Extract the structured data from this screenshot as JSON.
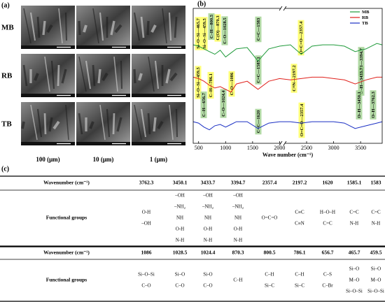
{
  "panel_a": {
    "label": "(a)",
    "rows": [
      "MB",
      "RB",
      "TB"
    ],
    "columns": [
      "100 (μm)",
      "10 (μm)",
      "1 (μm)"
    ]
  },
  "chart_data": {
    "type": "line",
    "panel_label": "(b)",
    "x_label": "Wave number (cm⁻¹)",
    "x": [
      400,
      500,
      600,
      700,
      800,
      900,
      1000,
      1100,
      1200,
      1400,
      1600,
      1800,
      2000,
      2200,
      2400,
      2600,
      2800,
      3000,
      3200,
      3400,
      3600,
      3800,
      3900
    ],
    "xlim": [
      400,
      3900
    ],
    "xticks": [
      500,
      1000,
      1500,
      2000,
      2500,
      3000,
      3500
    ],
    "ylim": [
      0,
      100
    ],
    "legend": "upper right",
    "series": [
      {
        "name": "MB",
        "color": "#1f9a3a",
        "values": [
          73,
          72,
          70,
          68,
          66,
          69,
          64,
          67,
          70,
          71,
          61,
          70,
          72,
          73,
          66,
          72,
          73,
          73,
          72,
          68,
          70,
          74,
          73
        ],
        "annotations": [
          "Si–O–Si—465.7",
          "Si–O–Si—459.5",
          "C–H—800.5",
          "C(O)—870.3",
          "C–O—1028.5",
          "C=C—1583",
          "O=C=O—2357.4",
          "O–H—3394.7"
        ]
      },
      {
        "name": "RB",
        "color": "#e0201b",
        "values": [
          49,
          48,
          46,
          43,
          41,
          42,
          40,
          38,
          44,
          46,
          40,
          46,
          48,
          47,
          48,
          49,
          49,
          48,
          47,
          44,
          47,
          49,
          49
        ],
        "annotations": [
          "Si–O–Si—459.5",
          "C–H—786.1",
          "C–O—1086",
          "C=C—1585.1",
          "C≡N—2197.2",
          "O–H—3433.7"
        ]
      },
      {
        "name": "TB",
        "color": "#1a2fc4",
        "values": [
          16,
          15,
          12,
          10,
          13,
          14,
          12,
          14,
          16,
          16,
          11,
          15,
          16,
          16,
          15,
          16,
          16,
          16,
          15,
          11,
          13,
          15,
          16
        ],
        "annotations": [
          "C–H—656.7",
          "C–O—1024.4",
          "C=C—1620",
          "O=C=O—2357.4",
          "O–H—3450.1",
          "O–H—3762.3"
        ]
      }
    ]
  },
  "table": {
    "label": "(c)",
    "blocks": [
      {
        "header": "Wavenumber (cm⁻¹)",
        "wavenumbers": [
          "3762.3",
          "3450.1",
          "3433.7",
          "3394.7",
          "2357.4",
          "2197.2",
          "1620",
          "1585.1",
          "1583"
        ],
        "row_label": "Functional groups",
        "groups": [
          [
            "O-H",
            "–OH"
          ],
          [
            "–OH",
            "–NH₂",
            "NH",
            "O-H",
            "N-H"
          ],
          [
            "–OH",
            "–NH₂",
            "NH",
            "O-H",
            "N-H"
          ],
          [
            "–OH",
            "–NH₂",
            "NH",
            "O-H",
            "N-H"
          ],
          [
            "O=C=O"
          ],
          [
            "C≡C",
            "C≡N"
          ],
          [
            "H–O–H",
            "C=C"
          ],
          [
            "C=C",
            "N-H"
          ],
          [
            "C=C",
            "N-H"
          ]
        ]
      },
      {
        "header": "Wavenumber (cm⁻¹)",
        "wavenumbers": [
          "1086",
          "1028.5",
          "1024.4",
          "870.3",
          "800.5",
          "786.1",
          "656.7",
          "465.7",
          "459.5"
        ],
        "row_label": "Functional groups",
        "groups": [
          [
            "Si–O–Si",
            "C–O"
          ],
          [
            "Si–O",
            "C–O"
          ],
          [
            "Si-O",
            "C–O"
          ],
          [
            "C–H"
          ],
          [
            "C–H",
            "Si–C"
          ],
          [
            "C–H",
            "Si–C"
          ],
          [
            "C–S",
            "C–Br"
          ],
          [
            "Si–O",
            "M–O",
            "Si–O–Si"
          ],
          [
            "Si–O",
            "M–O",
            "Si–O–Si"
          ]
        ]
      }
    ]
  }
}
